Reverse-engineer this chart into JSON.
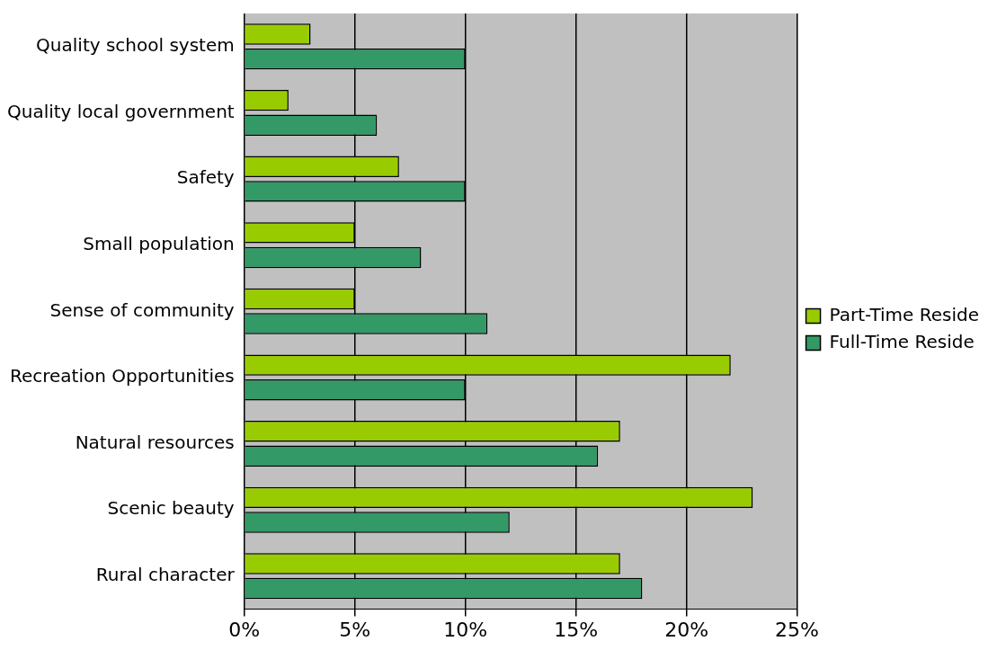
{
  "chart_data": {
    "type": "bar",
    "orientation": "horizontal",
    "categories": [
      "Quality school system",
      "Quality local government",
      "Safety",
      "Small population",
      "Sense of community",
      "Recreation Opportunities",
      "Natural resources",
      "Scenic beauty",
      "Rural character"
    ],
    "series": [
      {
        "name": "Part-Time Reside",
        "color": "#99cc00",
        "values": [
          3,
          2,
          7,
          5,
          5,
          22,
          17,
          23,
          17
        ]
      },
      {
        "name": "Full-Time Reside",
        "color": "#339966",
        "values": [
          10,
          6,
          10,
          8,
          11,
          10,
          16,
          12,
          18
        ]
      }
    ],
    "xlim": [
      0,
      25
    ],
    "xticks": [
      {
        "value": 0,
        "label": "0%"
      },
      {
        "value": 5,
        "label": "5%"
      },
      {
        "value": 10,
        "label": "10%"
      },
      {
        "value": 15,
        "label": "15%"
      },
      {
        "value": 20,
        "label": "20%"
      },
      {
        "value": 25,
        "label": "25%"
      }
    ],
    "grid": "x",
    "legend": "right"
  }
}
